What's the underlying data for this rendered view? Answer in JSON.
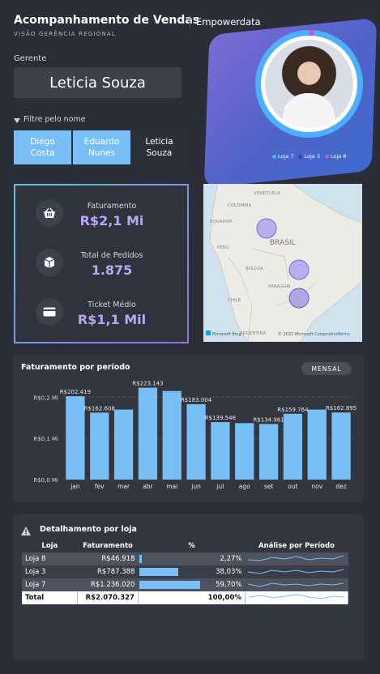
{
  "header": {
    "title": "Acompanhamento de Vendas",
    "brand": "Empowerdata",
    "subtitle": "VISÃO GERÊNCIA REGIONAL"
  },
  "manager": {
    "label": "Gerente",
    "name": "Leticia Souza"
  },
  "filter": {
    "label": "Filtre pelo nome",
    "options": [
      {
        "line1": "Diego",
        "line2": "Costa",
        "selected": true
      },
      {
        "line1": "Eduardo",
        "line2": "Nunes",
        "selected": true
      },
      {
        "line1": "Leticia",
        "line2": "Souza",
        "selected": false
      }
    ]
  },
  "legend": [
    {
      "label": "Loja 7",
      "color": "#4dafff"
    },
    {
      "label": "Loja 3",
      "color": "#3b3fb8"
    },
    {
      "label": "Loja 8",
      "color": "#c05cd6"
    }
  ],
  "kpis": [
    {
      "label": "Faturamento",
      "value": "R$2,1 Mi",
      "icon": "basket-icon"
    },
    {
      "label": "Total de Pedidos",
      "value": "1.875",
      "icon": "box-icon"
    },
    {
      "label": "Ticket Médio",
      "value": "R$1,1 Mil",
      "icon": "card-icon"
    }
  ],
  "map": {
    "labels": [
      "VENEZUELA",
      "COLÔMBIA",
      "EQUADOR",
      "PERU",
      "BRASIL",
      "BOLÍVIA",
      "PARAGUAI",
      "CHILE",
      "ARGENTINA"
    ],
    "attribution": "© 2022 Microsoft Corporation",
    "provider": "Microsoft Bing",
    "terms": "Terms"
  },
  "chart_data": {
    "type": "bar",
    "title": "Faturamento por período",
    "toggle": "MENSAL",
    "categories": [
      "jan",
      "fev",
      "mar",
      "abr",
      "mai",
      "jun",
      "jul",
      "ago",
      "set",
      "out",
      "nov",
      "dez"
    ],
    "values": [
      202419,
      162608,
      170000,
      223143,
      215000,
      183004,
      139546,
      137000,
      134981,
      159764,
      170000,
      162895
    ],
    "data_labels": [
      "R$202.419",
      "R$162.608",
      "",
      "R$223.143",
      "",
      "R$183.004",
      "R$139.546",
      "",
      "R$134.981",
      "R$159.764",
      "",
      "R$162.895"
    ],
    "yticks": [
      0,
      100000,
      200000
    ],
    "ytick_labels": [
      "R$0,0 Mi",
      "R$0,1 Mi",
      "R$0,2 Mi"
    ],
    "ylim": [
      0,
      240000
    ],
    "color": "#79bff7"
  },
  "details": {
    "title": "Detalhamento por loja",
    "headers": [
      "Loja",
      "Faturamento",
      "%",
      "Análise por Período"
    ],
    "rows": [
      {
        "loja": "Loja 8",
        "faturamento": "R$46.918",
        "pct": "2,27%",
        "share": 0.0227
      },
      {
        "loja": "Loja 3",
        "faturamento": "R$787.388",
        "pct": "38,03%",
        "share": 0.3803
      },
      {
        "loja": "Loja 7",
        "faturamento": "R$1.236.020",
        "pct": "59,70%",
        "share": 0.597
      }
    ],
    "total": {
      "loja": "Total",
      "faturamento": "R$2.070.327",
      "pct": "100,00%"
    }
  }
}
